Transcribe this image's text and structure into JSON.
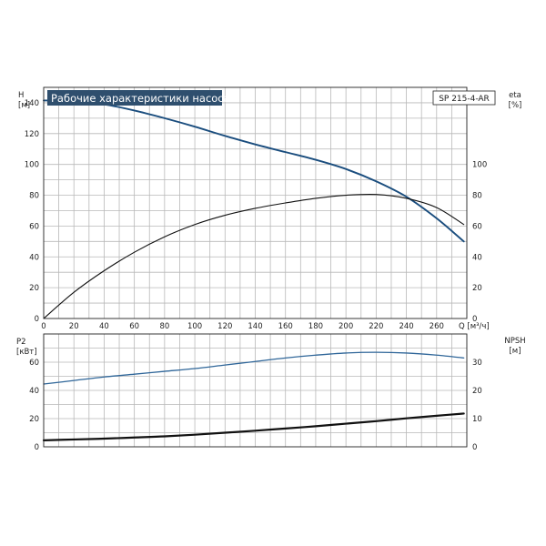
{
  "chart_title": "Рабочие характеристики насоса",
  "model_label": "SP 215-4-AR",
  "colors": {
    "head_curve": "#1a4d7e",
    "efficiency_curve": "#111111",
    "power_curve": "#2f6699",
    "npsh_curve": "#111111",
    "title_background": "#2f4f6e"
  },
  "chart_data": [
    {
      "type": "line",
      "panel": "top",
      "xlabel": "Q [м³/ч]",
      "ylabel": "H\n[м]",
      "y2label": "eta\n[%]",
      "xlim": [
        0,
        280
      ],
      "ylim": [
        0,
        150
      ],
      "y2lim": [
        0,
        150
      ],
      "x_ticks": [
        0,
        20,
        40,
        60,
        80,
        100,
        120,
        140,
        160,
        180,
        200,
        220,
        240,
        260
      ],
      "y_ticks": [
        0,
        20,
        40,
        60,
        80,
        100,
        120,
        140
      ],
      "y2_ticks": [
        0,
        20,
        40,
        60,
        80,
        100
      ],
      "grid": true,
      "series": [
        {
          "axis": "left",
          "color_key": "head_curve",
          "x": [
            0,
            20,
            40,
            60,
            80,
            100,
            120,
            140,
            160,
            180,
            200,
            220,
            240,
            260,
            278
          ],
          "y": [
            141.5,
            141,
            139,
            135,
            130,
            124.5,
            118.5,
            113,
            108,
            103,
            97,
            89,
            79,
            65,
            50
          ]
        },
        {
          "axis": "right",
          "color_key": "efficiency_curve",
          "x": [
            0,
            20,
            40,
            60,
            80,
            100,
            120,
            140,
            160,
            180,
            200,
            220,
            240,
            260,
            278
          ],
          "y": [
            0,
            17,
            31,
            43,
            53,
            61,
            67,
            71.5,
            75,
            78,
            80,
            80.5,
            78,
            72,
            61
          ]
        }
      ]
    },
    {
      "type": "line",
      "panel": "bottom",
      "ylabel": "P2\n[кВт]",
      "y2label": "NPSH\n[м]",
      "xlim": [
        0,
        280
      ],
      "ylim": [
        0,
        80
      ],
      "y2lim": [
        0,
        40
      ],
      "y_ticks": [
        0,
        20,
        40,
        60
      ],
      "y2_ticks": [
        0,
        10,
        20,
        30
      ],
      "grid": true,
      "series": [
        {
          "axis": "left",
          "color_key": "power_curve",
          "x": [
            0,
            20,
            40,
            60,
            80,
            100,
            120,
            140,
            160,
            180,
            200,
            220,
            240,
            260,
            278
          ],
          "y": [
            44.5,
            47,
            49.5,
            51.5,
            53.5,
            55.5,
            58,
            60.5,
            63,
            65,
            66.5,
            67,
            66.5,
            65,
            63
          ]
        },
        {
          "axis": "right",
          "color_key": "npsh_curve",
          "x": [
            0,
            20,
            40,
            60,
            80,
            100,
            120,
            140,
            160,
            180,
            200,
            220,
            240,
            260,
            278
          ],
          "y": [
            2.3,
            2.6,
            2.9,
            3.3,
            3.7,
            4.3,
            5.0,
            5.7,
            6.5,
            7.3,
            8.2,
            9.1,
            10.1,
            11.0,
            11.8
          ]
        }
      ]
    }
  ]
}
